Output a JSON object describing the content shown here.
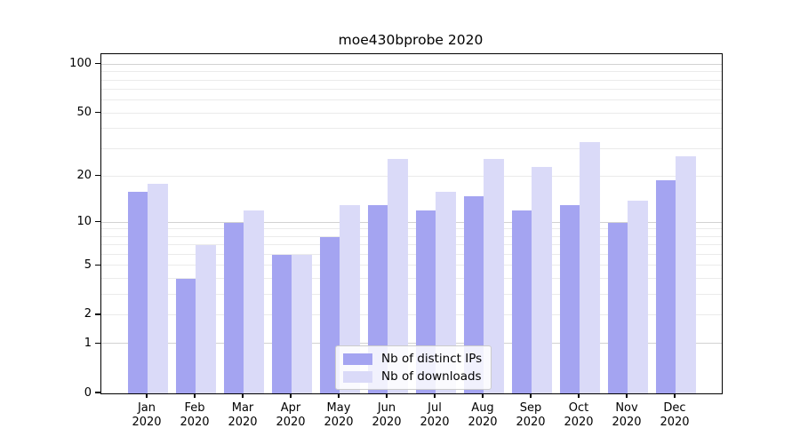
{
  "chart_data": {
    "type": "bar",
    "title": "moe430bprobe 2020",
    "categories": [
      "Jan",
      "Feb",
      "Mar",
      "Apr",
      "May",
      "Jun",
      "Jul",
      "Aug",
      "Sep",
      "Oct",
      "Nov",
      "Dec"
    ],
    "year_label": "2020",
    "series": [
      {
        "name": "Nb of distinct IPs",
        "color": "#a4a4f1",
        "values": [
          16,
          4,
          10,
          6,
          8,
          13,
          12,
          15,
          12,
          13,
          10,
          19
        ]
      },
      {
        "name": "Nb of downloads",
        "color": "#dadaf8",
        "values": [
          18,
          7,
          12,
          6,
          13,
          26,
          16,
          26,
          23,
          33,
          14,
          27
        ]
      }
    ],
    "yscale": "log1p",
    "y_ticks": [
      0,
      1,
      2,
      5,
      10,
      20,
      50,
      100
    ],
    "y_major_gridlines": [
      1,
      10,
      100
    ],
    "y_minor_gridlines": [
      2,
      3,
      4,
      5,
      6,
      7,
      8,
      9,
      20,
      30,
      40,
      50,
      60,
      70,
      80,
      90
    ],
    "ylim": [
      0,
      116
    ],
    "grid": true,
    "legend_position": "lower center"
  },
  "colors": {
    "background": "#ffffff",
    "spine": "#000000",
    "grid_major": "#d2d2d2",
    "grid_minor": "#ebebeb",
    "legend_border": "#cccccc"
  }
}
